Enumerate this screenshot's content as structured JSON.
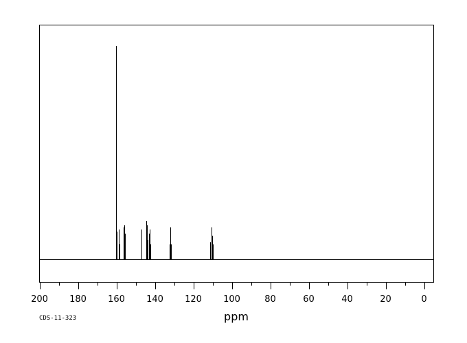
{
  "chart_data": {
    "type": "line",
    "title": "",
    "xlabel": "ppm",
    "ylabel": "",
    "xlim": [
      200,
      -5
    ],
    "x_reversed": true,
    "ylim": [
      -0.1,
      1.07
    ],
    "grid": false,
    "x_ticks": [
      200,
      180,
      160,
      140,
      120,
      100,
      80,
      60,
      40,
      20,
      0
    ],
    "x_tick_labels": [
      "200",
      "180",
      "160",
      "140",
      "120",
      "100",
      "80",
      "60",
      "40",
      "20",
      "0"
    ],
    "series": [
      {
        "peaks": [
          {
            "ppm": 160.2,
            "intensity": 1.0
          },
          {
            "ppm": 160.0,
            "intensity": 0.13
          },
          {
            "ppm": 158.6,
            "intensity": 0.14
          },
          {
            "ppm": 158.4,
            "intensity": 0.07
          },
          {
            "ppm": 156.1,
            "intensity": 0.15
          },
          {
            "ppm": 155.8,
            "intensity": 0.16
          },
          {
            "ppm": 155.5,
            "intensity": 0.12
          },
          {
            "ppm": 147.0,
            "intensity": 0.14
          },
          {
            "ppm": 146.8,
            "intensity": 0.07
          },
          {
            "ppm": 144.4,
            "intensity": 0.18
          },
          {
            "ppm": 144.1,
            "intensity": 0.16
          },
          {
            "ppm": 143.6,
            "intensity": 0.09
          },
          {
            "ppm": 143.1,
            "intensity": 0.12
          },
          {
            "ppm": 142.8,
            "intensity": 0.14
          },
          {
            "ppm": 142.5,
            "intensity": 0.07
          },
          {
            "ppm": 132.4,
            "intensity": 0.07
          },
          {
            "ppm": 132.0,
            "intensity": 0.15
          },
          {
            "ppm": 131.6,
            "intensity": 0.07
          },
          {
            "ppm": 111.3,
            "intensity": 0.08
          },
          {
            "ppm": 110.6,
            "intensity": 0.15
          },
          {
            "ppm": 110.2,
            "intensity": 0.11
          },
          {
            "ppm": 109.8,
            "intensity": 0.07
          }
        ]
      }
    ]
  },
  "footer": {
    "code": "CDS-11-323"
  }
}
